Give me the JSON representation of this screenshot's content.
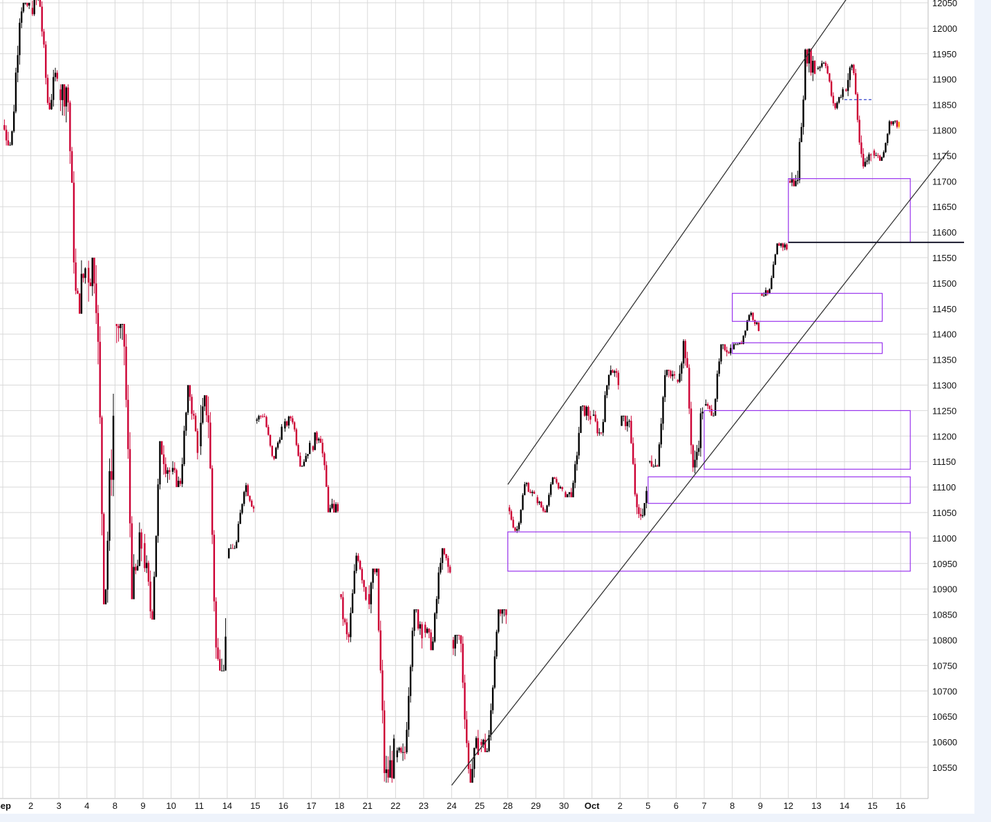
{
  "colors": {
    "background": "#ffffff",
    "frame_background": "#eef3fb",
    "grid": "#d9d9d9",
    "up_bar": "#000000",
    "down_bar": "#cc0033",
    "channel_line": "#333333",
    "zone_box": "#9933ee",
    "support_line": "#1a1a2e",
    "dashed_level": "#3344cc",
    "last_bar": "#ff9900"
  },
  "chart_data": {
    "type": "candlestick",
    "title": "",
    "xlabel": "",
    "ylabel": "",
    "ylim": [
      10515,
      12055
    ],
    "y_ticks": [
      12050,
      12000,
      11950,
      11900,
      11850,
      11800,
      11750,
      11700,
      11650,
      11600,
      11550,
      11500,
      11450,
      11400,
      11350,
      11300,
      11250,
      11200,
      11150,
      11100,
      11050,
      11000,
      10950,
      10900,
      10850,
      10800,
      10750,
      10700,
      10650,
      10600,
      10550
    ],
    "y_tick_labels": [
      "12050",
      "12000",
      "11950",
      "11900",
      "11850",
      "11800",
      "11750",
      "11700",
      "11650",
      "11600",
      "11550",
      "11500",
      "11450",
      "11400",
      "11350",
      "11300",
      "11250",
      "11200",
      "11150",
      "11100",
      "11050",
      "11000",
      "10950",
      "10900",
      "10850",
      "10800",
      "10750",
      "10700",
      "10650",
      "10600",
      "10550"
    ],
    "x_tick_labels": [
      "Sep",
      "2",
      "3",
      "4",
      "8",
      "9",
      "10",
      "11",
      "14",
      "15",
      "16",
      "17",
      "18",
      "21",
      "22",
      "23",
      "24",
      "25",
      "28",
      "29",
      "30",
      "Oct",
      "2",
      "5",
      "6",
      "7",
      "8",
      "9",
      "12",
      "13",
      "14",
      "15",
      "16"
    ],
    "major_x_labels": [
      "Sep",
      "Oct"
    ],
    "grid": true,
    "session_path": [
      {
        "session": "Sep 1",
        "open": 11810,
        "high": 12050,
        "low": 11770,
        "close": 12040
      },
      {
        "session": "Sep 2",
        "open": 12040,
        "high": 12060,
        "low": 11840,
        "close": 11920
      },
      {
        "session": "Sep 3",
        "open": 11880,
        "high": 11890,
        "low": 11440,
        "close": 11530
      },
      {
        "session": "Sep 4",
        "open": 11530,
        "high": 11550,
        "low": 10870,
        "close": 11240
      },
      {
        "session": "Sep 8",
        "open": 11420,
        "high": 11420,
        "low": 10880,
        "close": 10990
      },
      {
        "session": "Sep 9",
        "open": 10990,
        "high": 11190,
        "low": 10840,
        "close": 11130
      },
      {
        "session": "Sep 10",
        "open": 11130,
        "high": 11300,
        "low": 11100,
        "close": 11180
      },
      {
        "session": "Sep 11",
        "open": 11180,
        "high": 11280,
        "low": 10740,
        "close": 10790
      },
      {
        "session": "Sep 14",
        "open": 10960,
        "high": 11110,
        "low": 10980,
        "close": 11060
      },
      {
        "session": "Sep 15",
        "open": 11230,
        "high": 11245,
        "low": 11150,
        "close": 11215
      },
      {
        "session": "Sep 16",
        "open": 11215,
        "high": 11240,
        "low": 11140,
        "close": 11180
      },
      {
        "session": "Sep 17",
        "open": 11180,
        "high": 11210,
        "low": 11050,
        "close": 11060
      },
      {
        "session": "Sep 18",
        "open": 10890,
        "high": 10980,
        "low": 10790,
        "close": 10890
      },
      {
        "session": "Sep 21",
        "open": 10890,
        "high": 10940,
        "low": 10520,
        "close": 10570
      },
      {
        "session": "Sep 22",
        "open": 10570,
        "high": 10860,
        "low": 10560,
        "close": 10830
      },
      {
        "session": "Sep 23",
        "open": 10830,
        "high": 10980,
        "low": 10780,
        "close": 10930
      },
      {
        "session": "Sep 24",
        "open": 10800,
        "high": 10810,
        "low": 10520,
        "close": 10600
      },
      {
        "session": "Sep 25",
        "open": 10600,
        "high": 10860,
        "low": 10580,
        "close": 10840
      },
      {
        "session": "Sep 28",
        "open": 11060,
        "high": 11110,
        "low": 11010,
        "close": 11080
      },
      {
        "session": "Sep 29",
        "open": 11080,
        "high": 11120,
        "low": 11050,
        "close": 11090
      },
      {
        "session": "Sep 30",
        "open": 11090,
        "high": 11260,
        "low": 11080,
        "close": 11240
      },
      {
        "session": "Oct 1",
        "open": 11240,
        "high": 11340,
        "low": 11200,
        "close": 11310
      },
      {
        "session": "Oct 2",
        "open": 11220,
        "high": 11240,
        "low": 11030,
        "close": 11080
      },
      {
        "session": "Oct 5",
        "open": 11150,
        "high": 11330,
        "low": 11140,
        "close": 11310
      },
      {
        "session": "Oct 6",
        "open": 11310,
        "high": 11390,
        "low": 11120,
        "close": 11260
      },
      {
        "session": "Oct 7",
        "open": 11260,
        "high": 11380,
        "low": 11240,
        "close": 11370
      },
      {
        "session": "Oct 8",
        "open": 11370,
        "high": 11445,
        "low": 11380,
        "close": 11410
      },
      {
        "session": "Oct 9",
        "open": 11480,
        "high": 11580,
        "low": 11475,
        "close": 11570
      },
      {
        "session": "Oct 12",
        "open": 11700,
        "high": 11960,
        "low": 11690,
        "close": 11920
      },
      {
        "session": "Oct 13",
        "open": 11920,
        "high": 11940,
        "low": 11840,
        "close": 11880
      },
      {
        "session": "Oct 14",
        "open": 11880,
        "high": 11930,
        "low": 11720,
        "close": 11760
      },
      {
        "session": "Oct 15",
        "open": 11760,
        "high": 11820,
        "low": 11740,
        "close": 11810
      }
    ],
    "channel_lines": [
      {
        "name": "upper",
        "from": {
          "x": "Sep 28",
          "y": 11105
        },
        "to": {
          "x": "Oct 13",
          "y": 12070
        }
      },
      {
        "name": "lower",
        "from": {
          "x": "Sep 24",
          "y": 10515
        },
        "to": {
          "x": "Oct 15",
          "y": 11760
        }
      }
    ],
    "zones": [
      {
        "from": "Oct 12",
        "to": "Oct 16",
        "y_low": 11580,
        "y_high": 11705
      },
      {
        "from": "Oct 8",
        "to": "Oct 15",
        "y_low": 11425,
        "y_high": 11480
      },
      {
        "from": "Oct 8",
        "to": "Oct 15",
        "y_low": 11362,
        "y_high": 11383
      },
      {
        "from": "Oct 7",
        "to": "Oct 16",
        "y_low": 11135,
        "y_high": 11250
      },
      {
        "from": "Oct 5",
        "to": "Oct 16",
        "y_low": 11068,
        "y_high": 11120
      },
      {
        "from": "Sep 28",
        "to": "Oct 16",
        "y_low": 10935,
        "y_high": 11012
      }
    ],
    "horizontal_levels": [
      {
        "style": "solid",
        "from": "Oct 12",
        "to": "Oct 16",
        "y": 11580
      },
      {
        "style": "dashed",
        "from": "Oct 14",
        "to": "Oct 15",
        "y": 11860
      }
    ]
  }
}
